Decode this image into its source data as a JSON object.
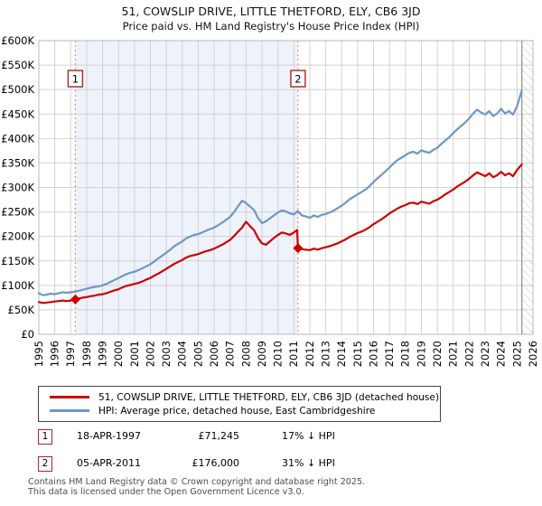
{
  "title": "51, COWSLIP DRIVE, LITTLE THETFORD, ELY, CB6 3JD",
  "subtitle": "Price paid vs. HM Land Registry's House Price Index (HPI)",
  "colors": {
    "property_line": "#cc0000",
    "hpi_line": "#6e97c8",
    "sale_marker": "#cc0000",
    "marker_box_border": "#b22222",
    "dashed_guide": "#f28b8b",
    "shade": "#eef2fb",
    "grid": "#d2d2d2",
    "plot_border": "#b8b8b8",
    "hatch_line": "#c9c9c9",
    "data_end_line": "#999999",
    "footer_text": "#4d4d4d"
  },
  "chart_data": {
    "type": "line",
    "title": "51, COWSLIP DRIVE, LITTLE THETFORD, ELY, CB6 3JD",
    "subtitle": "Price paid vs. HM Land Registry's House Price Index (HPI)",
    "grid": true,
    "x_axis": {
      "min": 1995,
      "max": 2026,
      "tick_labels": [
        "1995",
        "1996",
        "1997",
        "1998",
        "1999",
        "2000",
        "2001",
        "2002",
        "2003",
        "2004",
        "2005",
        "2006",
        "2007",
        "2008",
        "2009",
        "2010",
        "2011",
        "2012",
        "2013",
        "2014",
        "2015",
        "2016",
        "2017",
        "2018",
        "2019",
        "2020",
        "2021",
        "2022",
        "2023",
        "2024",
        "2025",
        "2026"
      ]
    },
    "y_axis": {
      "min": 0,
      "max": 600000,
      "ticks": [
        [
          0,
          "£0"
        ],
        [
          50000,
          "£50K"
        ],
        [
          100000,
          "£100K"
        ],
        [
          150000,
          "£150K"
        ],
        [
          200000,
          "£200K"
        ],
        [
          250000,
          "£250K"
        ],
        [
          300000,
          "£300K"
        ],
        [
          350000,
          "£350K"
        ],
        [
          400000,
          "£400K"
        ],
        [
          450000,
          "£450K"
        ],
        [
          500000,
          "£500K"
        ],
        [
          550000,
          "£550K"
        ],
        [
          600000,
          "£600K"
        ]
      ]
    },
    "shaded_span": {
      "from": 1997.29,
      "to": 2011.26
    },
    "future_hatch_from": 2025.3,
    "markers": [
      {
        "label": "1",
        "t": 1997.29,
        "value": 71245
      },
      {
        "label": "2",
        "t": 2011.26,
        "value": 176000
      }
    ],
    "series": [
      {
        "name": "HPI: Average price, detached house, East Cambridgeshire",
        "data_name": "hpi-line",
        "color": "#6e97c8",
        "points": [
          [
            1995.0,
            84000
          ],
          [
            1995.25,
            80000
          ],
          [
            1995.5,
            81000
          ],
          [
            1995.75,
            83000
          ],
          [
            1996.0,
            82000
          ],
          [
            1996.25,
            84000
          ],
          [
            1996.5,
            86000
          ],
          [
            1996.75,
            85000
          ],
          [
            1997.0,
            86000
          ],
          [
            1997.25,
            87000
          ],
          [
            1997.5,
            89000
          ],
          [
            1997.75,
            91000
          ],
          [
            1998.0,
            93000
          ],
          [
            1998.25,
            95000
          ],
          [
            1998.5,
            97000
          ],
          [
            1998.75,
            98000
          ],
          [
            1999.0,
            100000
          ],
          [
            1999.25,
            103000
          ],
          [
            1999.5,
            107000
          ],
          [
            1999.75,
            111000
          ],
          [
            2000.0,
            115000
          ],
          [
            2000.25,
            119000
          ],
          [
            2000.5,
            123000
          ],
          [
            2000.75,
            126000
          ],
          [
            2001.0,
            128000
          ],
          [
            2001.25,
            131000
          ],
          [
            2001.5,
            135000
          ],
          [
            2001.75,
            139000
          ],
          [
            2002.0,
            143000
          ],
          [
            2002.25,
            149000
          ],
          [
            2002.5,
            155000
          ],
          [
            2002.75,
            161000
          ],
          [
            2003.0,
            167000
          ],
          [
            2003.25,
            173000
          ],
          [
            2003.5,
            180000
          ],
          [
            2003.75,
            185000
          ],
          [
            2004.0,
            190000
          ],
          [
            2004.25,
            196000
          ],
          [
            2004.5,
            200000
          ],
          [
            2004.75,
            203000
          ],
          [
            2005.0,
            205000
          ],
          [
            2005.25,
            208000
          ],
          [
            2005.5,
            212000
          ],
          [
            2005.75,
            215000
          ],
          [
            2006.0,
            218000
          ],
          [
            2006.25,
            223000
          ],
          [
            2006.5,
            228000
          ],
          [
            2006.75,
            234000
          ],
          [
            2007.0,
            240000
          ],
          [
            2007.25,
            250000
          ],
          [
            2007.5,
            262000
          ],
          [
            2007.75,
            273000
          ],
          [
            2008.0,
            268000
          ],
          [
            2008.25,
            261000
          ],
          [
            2008.5,
            254000
          ],
          [
            2008.75,
            238000
          ],
          [
            2009.0,
            227000
          ],
          [
            2009.25,
            231000
          ],
          [
            2009.5,
            237000
          ],
          [
            2009.75,
            243000
          ],
          [
            2010.0,
            249000
          ],
          [
            2010.25,
            253000
          ],
          [
            2010.5,
            251000
          ],
          [
            2010.75,
            247000
          ],
          [
            2011.0,
            245000
          ],
          [
            2011.25,
            252000
          ],
          [
            2011.5,
            243000
          ],
          [
            2011.75,
            241000
          ],
          [
            2012.0,
            238000
          ],
          [
            2012.25,
            243000
          ],
          [
            2012.5,
            240000
          ],
          [
            2012.75,
            244000
          ],
          [
            2013.0,
            246000
          ],
          [
            2013.25,
            249000
          ],
          [
            2013.5,
            253000
          ],
          [
            2013.75,
            258000
          ],
          [
            2014.0,
            263000
          ],
          [
            2014.25,
            269000
          ],
          [
            2014.5,
            276000
          ],
          [
            2014.75,
            281000
          ],
          [
            2015.0,
            286000
          ],
          [
            2015.25,
            291000
          ],
          [
            2015.5,
            296000
          ],
          [
            2015.75,
            303000
          ],
          [
            2016.0,
            311000
          ],
          [
            2016.25,
            319000
          ],
          [
            2016.5,
            326000
          ],
          [
            2016.75,
            333000
          ],
          [
            2017.0,
            341000
          ],
          [
            2017.25,
            349000
          ],
          [
            2017.5,
            356000
          ],
          [
            2017.75,
            361000
          ],
          [
            2018.0,
            366000
          ],
          [
            2018.25,
            371000
          ],
          [
            2018.5,
            373000
          ],
          [
            2018.75,
            369000
          ],
          [
            2019.0,
            376000
          ],
          [
            2019.25,
            373000
          ],
          [
            2019.5,
            371000
          ],
          [
            2019.75,
            377000
          ],
          [
            2020.0,
            381000
          ],
          [
            2020.25,
            389000
          ],
          [
            2020.5,
            396000
          ],
          [
            2020.75,
            403000
          ],
          [
            2021.0,
            411000
          ],
          [
            2021.25,
            419000
          ],
          [
            2021.5,
            426000
          ],
          [
            2021.75,
            433000
          ],
          [
            2022.0,
            441000
          ],
          [
            2022.25,
            451000
          ],
          [
            2022.5,
            459000
          ],
          [
            2022.75,
            453000
          ],
          [
            2023.0,
            449000
          ],
          [
            2023.25,
            456000
          ],
          [
            2023.5,
            446000
          ],
          [
            2023.75,
            451000
          ],
          [
            2024.0,
            461000
          ],
          [
            2024.25,
            451000
          ],
          [
            2024.5,
            456000
          ],
          [
            2024.75,
            449000
          ],
          [
            2025.0,
            466000
          ],
          [
            2025.3,
            498000
          ]
        ]
      },
      {
        "name": "51, COWSLIP DRIVE, LITTLE THETFORD, ELY, CB6 3JD (detached house)",
        "data_name": "property-price-line",
        "color": "#cc0000",
        "points": [
          [
            1995.0,
            66000
          ],
          [
            1995.25,
            64000
          ],
          [
            1995.5,
            65000
          ],
          [
            1995.75,
            66000
          ],
          [
            1996.0,
            67000
          ],
          [
            1996.25,
            68000
          ],
          [
            1996.5,
            69000
          ],
          [
            1996.75,
            68000
          ],
          [
            1997.0,
            69000
          ],
          [
            1997.29,
            71245
          ],
          [
            1997.5,
            73000
          ],
          [
            1997.75,
            75000
          ],
          [
            1998.0,
            76000
          ],
          [
            1998.25,
            78000
          ],
          [
            1998.5,
            79000
          ],
          [
            1998.75,
            81000
          ],
          [
            1999.0,
            82000
          ],
          [
            1999.25,
            84000
          ],
          [
            1999.5,
            87000
          ],
          [
            1999.75,
            90000
          ],
          [
            2000.0,
            92000
          ],
          [
            2000.25,
            96000
          ],
          [
            2000.5,
            99000
          ],
          [
            2000.75,
            101000
          ],
          [
            2001.0,
            103000
          ],
          [
            2001.25,
            105000
          ],
          [
            2001.5,
            108000
          ],
          [
            2001.75,
            112000
          ],
          [
            2002.0,
            115000
          ],
          [
            2002.25,
            120000
          ],
          [
            2002.5,
            124000
          ],
          [
            2002.75,
            129000
          ],
          [
            2003.0,
            134000
          ],
          [
            2003.25,
            139000
          ],
          [
            2003.5,
            144000
          ],
          [
            2003.75,
            148000
          ],
          [
            2004.0,
            152000
          ],
          [
            2004.25,
            157000
          ],
          [
            2004.5,
            160000
          ],
          [
            2004.75,
            162000
          ],
          [
            2005.0,
            164000
          ],
          [
            2005.25,
            167000
          ],
          [
            2005.5,
            170000
          ],
          [
            2005.75,
            172000
          ],
          [
            2006.0,
            175000
          ],
          [
            2006.25,
            179000
          ],
          [
            2006.5,
            183000
          ],
          [
            2006.75,
            188000
          ],
          [
            2007.0,
            193000
          ],
          [
            2007.25,
            201000
          ],
          [
            2007.5,
            210000
          ],
          [
            2007.75,
            218000
          ],
          [
            2008.0,
            230000
          ],
          [
            2008.25,
            221000
          ],
          [
            2008.5,
            213000
          ],
          [
            2008.75,
            197000
          ],
          [
            2009.0,
            186000
          ],
          [
            2009.25,
            183000
          ],
          [
            2009.5,
            190000
          ],
          [
            2009.75,
            197000
          ],
          [
            2010.0,
            203000
          ],
          [
            2010.25,
            208000
          ],
          [
            2010.5,
            206000
          ],
          [
            2010.75,
            203000
          ],
          [
            2011.0,
            208000
          ],
          [
            2011.2,
            213000
          ],
          [
            2011.26,
            176000
          ],
          [
            2011.5,
            174000
          ],
          [
            2011.75,
            173000
          ],
          [
            2012.0,
            172000
          ],
          [
            2012.25,
            175000
          ],
          [
            2012.5,
            173000
          ],
          [
            2012.75,
            176000
          ],
          [
            2013.0,
            178000
          ],
          [
            2013.25,
            180000
          ],
          [
            2013.5,
            183000
          ],
          [
            2013.75,
            186000
          ],
          [
            2014.0,
            190000
          ],
          [
            2014.25,
            194000
          ],
          [
            2014.5,
            199000
          ],
          [
            2014.75,
            203000
          ],
          [
            2015.0,
            207000
          ],
          [
            2015.25,
            210000
          ],
          [
            2015.5,
            214000
          ],
          [
            2015.75,
            219000
          ],
          [
            2016.0,
            225000
          ],
          [
            2016.25,
            230000
          ],
          [
            2016.5,
            235000
          ],
          [
            2016.75,
            241000
          ],
          [
            2017.0,
            247000
          ],
          [
            2017.25,
            252000
          ],
          [
            2017.5,
            257000
          ],
          [
            2017.75,
            261000
          ],
          [
            2018.0,
            264000
          ],
          [
            2018.25,
            268000
          ],
          [
            2018.5,
            269000
          ],
          [
            2018.75,
            266000
          ],
          [
            2019.0,
            271000
          ],
          [
            2019.25,
            269000
          ],
          [
            2019.5,
            267000
          ],
          [
            2019.75,
            272000
          ],
          [
            2020.0,
            275000
          ],
          [
            2020.25,
            280000
          ],
          [
            2020.5,
            286000
          ],
          [
            2020.75,
            291000
          ],
          [
            2021.0,
            296000
          ],
          [
            2021.25,
            302000
          ],
          [
            2021.5,
            307000
          ],
          [
            2021.75,
            312000
          ],
          [
            2022.0,
            318000
          ],
          [
            2022.25,
            325000
          ],
          [
            2022.5,
            331000
          ],
          [
            2022.75,
            327000
          ],
          [
            2023.0,
            323000
          ],
          [
            2023.25,
            329000
          ],
          [
            2023.5,
            321000
          ],
          [
            2023.75,
            325000
          ],
          [
            2024.0,
            332000
          ],
          [
            2024.25,
            325000
          ],
          [
            2024.5,
            329000
          ],
          [
            2024.75,
            323000
          ],
          [
            2025.0,
            336000
          ],
          [
            2025.3,
            347000
          ]
        ]
      }
    ]
  },
  "legend": {
    "items": [
      {
        "label": "51, COWSLIP DRIVE, LITTLE THETFORD, ELY, CB6 3JD (detached house)",
        "color": "#cc0000"
      },
      {
        "label": "HPI: Average price, detached house, East Cambridgeshire",
        "color": "#6e97c8"
      }
    ]
  },
  "transactions": [
    {
      "num": "1",
      "date": "18-APR-1997",
      "price": "£71,245",
      "hpi_delta": "17% ↓ HPI"
    },
    {
      "num": "2",
      "date": "05-APR-2011",
      "price": "£176,000",
      "hpi_delta": "31% ↓ HPI"
    }
  ],
  "footer": {
    "line1": "Contains HM Land Registry data © Crown copyright and database right 2025.",
    "line2": "This data is licensed under the Open Government Licence v3.0."
  }
}
